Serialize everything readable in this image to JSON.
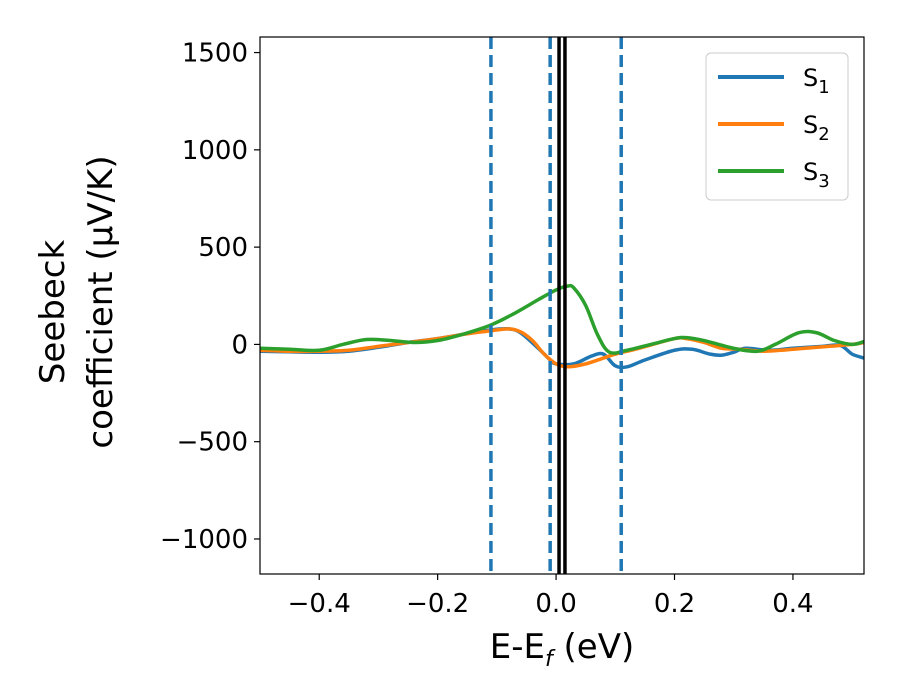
{
  "chart_data": {
    "type": "line",
    "xlabel": {
      "main": "E-E",
      "sub": "f",
      "unit": " (eV)"
    },
    "ylabel": {
      "line1": "Seebeck",
      "line2": "coefficient  (μV/K)"
    },
    "xlim": [
      -0.5,
      0.52
    ],
    "ylim": [
      -1180,
      1580
    ],
    "x_ticks": [
      -0.4,
      -0.2,
      0.0,
      0.2,
      0.4
    ],
    "x_tick_labels": [
      "−0.4",
      "−0.2",
      "0.0",
      "0.2",
      "0.4"
    ],
    "y_ticks": [
      -1000,
      -500,
      0,
      500,
      1000,
      1500
    ],
    "y_tick_labels": [
      "−1000",
      "−500",
      "0",
      "500",
      "1000",
      "1500"
    ],
    "grid": false,
    "legend_position": "top-right",
    "reference_lines": [
      {
        "x": -0.11,
        "style": "dashed",
        "color": "#1f77b4"
      },
      {
        "x": -0.01,
        "style": "dashed",
        "color": "#1f77b4"
      },
      {
        "x": 0.11,
        "style": "dashed",
        "color": "#1f77b4"
      },
      {
        "x": 0.005,
        "style": "solid",
        "color": "#000000"
      },
      {
        "x": 0.015,
        "style": "solid",
        "color": "#000000"
      }
    ],
    "series": [
      {
        "name": "S",
        "sub": "1",
        "color": "#1f77b4",
        "points": [
          [
            -0.5,
            -35
          ],
          [
            -0.45,
            -38
          ],
          [
            -0.4,
            -40
          ],
          [
            -0.35,
            -35
          ],
          [
            -0.3,
            -15
          ],
          [
            -0.25,
            10
          ],
          [
            -0.2,
            30
          ],
          [
            -0.15,
            55
          ],
          [
            -0.11,
            75
          ],
          [
            -0.08,
            80
          ],
          [
            -0.06,
            60
          ],
          [
            -0.03,
            -20
          ],
          [
            -0.01,
            -80
          ],
          [
            0.0,
            -100
          ],
          [
            0.03,
            -100
          ],
          [
            0.06,
            -60
          ],
          [
            0.08,
            -50
          ],
          [
            0.1,
            -110
          ],
          [
            0.12,
            -115
          ],
          [
            0.15,
            -80
          ],
          [
            0.2,
            -30
          ],
          [
            0.23,
            -25
          ],
          [
            0.26,
            -50
          ],
          [
            0.28,
            -55
          ],
          [
            0.3,
            -40
          ],
          [
            0.32,
            -20
          ],
          [
            0.36,
            -30
          ],
          [
            0.4,
            -20
          ],
          [
            0.45,
            -10
          ],
          [
            0.48,
            -5
          ],
          [
            0.5,
            -50
          ],
          [
            0.52,
            -70
          ]
        ]
      },
      {
        "name": "S",
        "sub": "2",
        "color": "#ff7f0e",
        "points": [
          [
            -0.5,
            -30
          ],
          [
            -0.45,
            -35
          ],
          [
            -0.4,
            -35
          ],
          [
            -0.35,
            -30
          ],
          [
            -0.3,
            -10
          ],
          [
            -0.25,
            10
          ],
          [
            -0.2,
            30
          ],
          [
            -0.15,
            55
          ],
          [
            -0.11,
            70
          ],
          [
            -0.08,
            80
          ],
          [
            -0.06,
            65
          ],
          [
            -0.04,
            20
          ],
          [
            -0.02,
            -50
          ],
          [
            0.0,
            -100
          ],
          [
            0.02,
            -115
          ],
          [
            0.05,
            -100
          ],
          [
            0.08,
            -70
          ],
          [
            0.1,
            -50
          ],
          [
            0.14,
            -20
          ],
          [
            0.2,
            30
          ],
          [
            0.22,
            30
          ],
          [
            0.25,
            10
          ],
          [
            0.28,
            -20
          ],
          [
            0.31,
            -25
          ],
          [
            0.35,
            -35
          ],
          [
            0.38,
            -30
          ],
          [
            0.42,
            -20
          ],
          [
            0.46,
            -10
          ],
          [
            0.5,
            0
          ],
          [
            0.52,
            10
          ]
        ]
      },
      {
        "name": "S",
        "sub": "3",
        "color": "#2ca02c",
        "points": [
          [
            -0.5,
            -20
          ],
          [
            -0.45,
            -25
          ],
          [
            -0.4,
            -30
          ],
          [
            -0.36,
            0
          ],
          [
            -0.32,
            25
          ],
          [
            -0.28,
            20
          ],
          [
            -0.24,
            10
          ],
          [
            -0.2,
            20
          ],
          [
            -0.16,
            50
          ],
          [
            -0.11,
            100
          ],
          [
            -0.07,
            160
          ],
          [
            -0.03,
            230
          ],
          [
            0.0,
            280
          ],
          [
            0.02,
            300
          ],
          [
            0.03,
            290
          ],
          [
            0.05,
            200
          ],
          [
            0.07,
            50
          ],
          [
            0.09,
            -40
          ],
          [
            0.12,
            -30
          ],
          [
            0.16,
            0
          ],
          [
            0.2,
            30
          ],
          [
            0.22,
            35
          ],
          [
            0.25,
            20
          ],
          [
            0.3,
            -20
          ],
          [
            0.34,
            -35
          ],
          [
            0.37,
            0
          ],
          [
            0.41,
            60
          ],
          [
            0.44,
            60
          ],
          [
            0.47,
            20
          ],
          [
            0.5,
            0
          ],
          [
            0.52,
            15
          ]
        ]
      }
    ]
  }
}
